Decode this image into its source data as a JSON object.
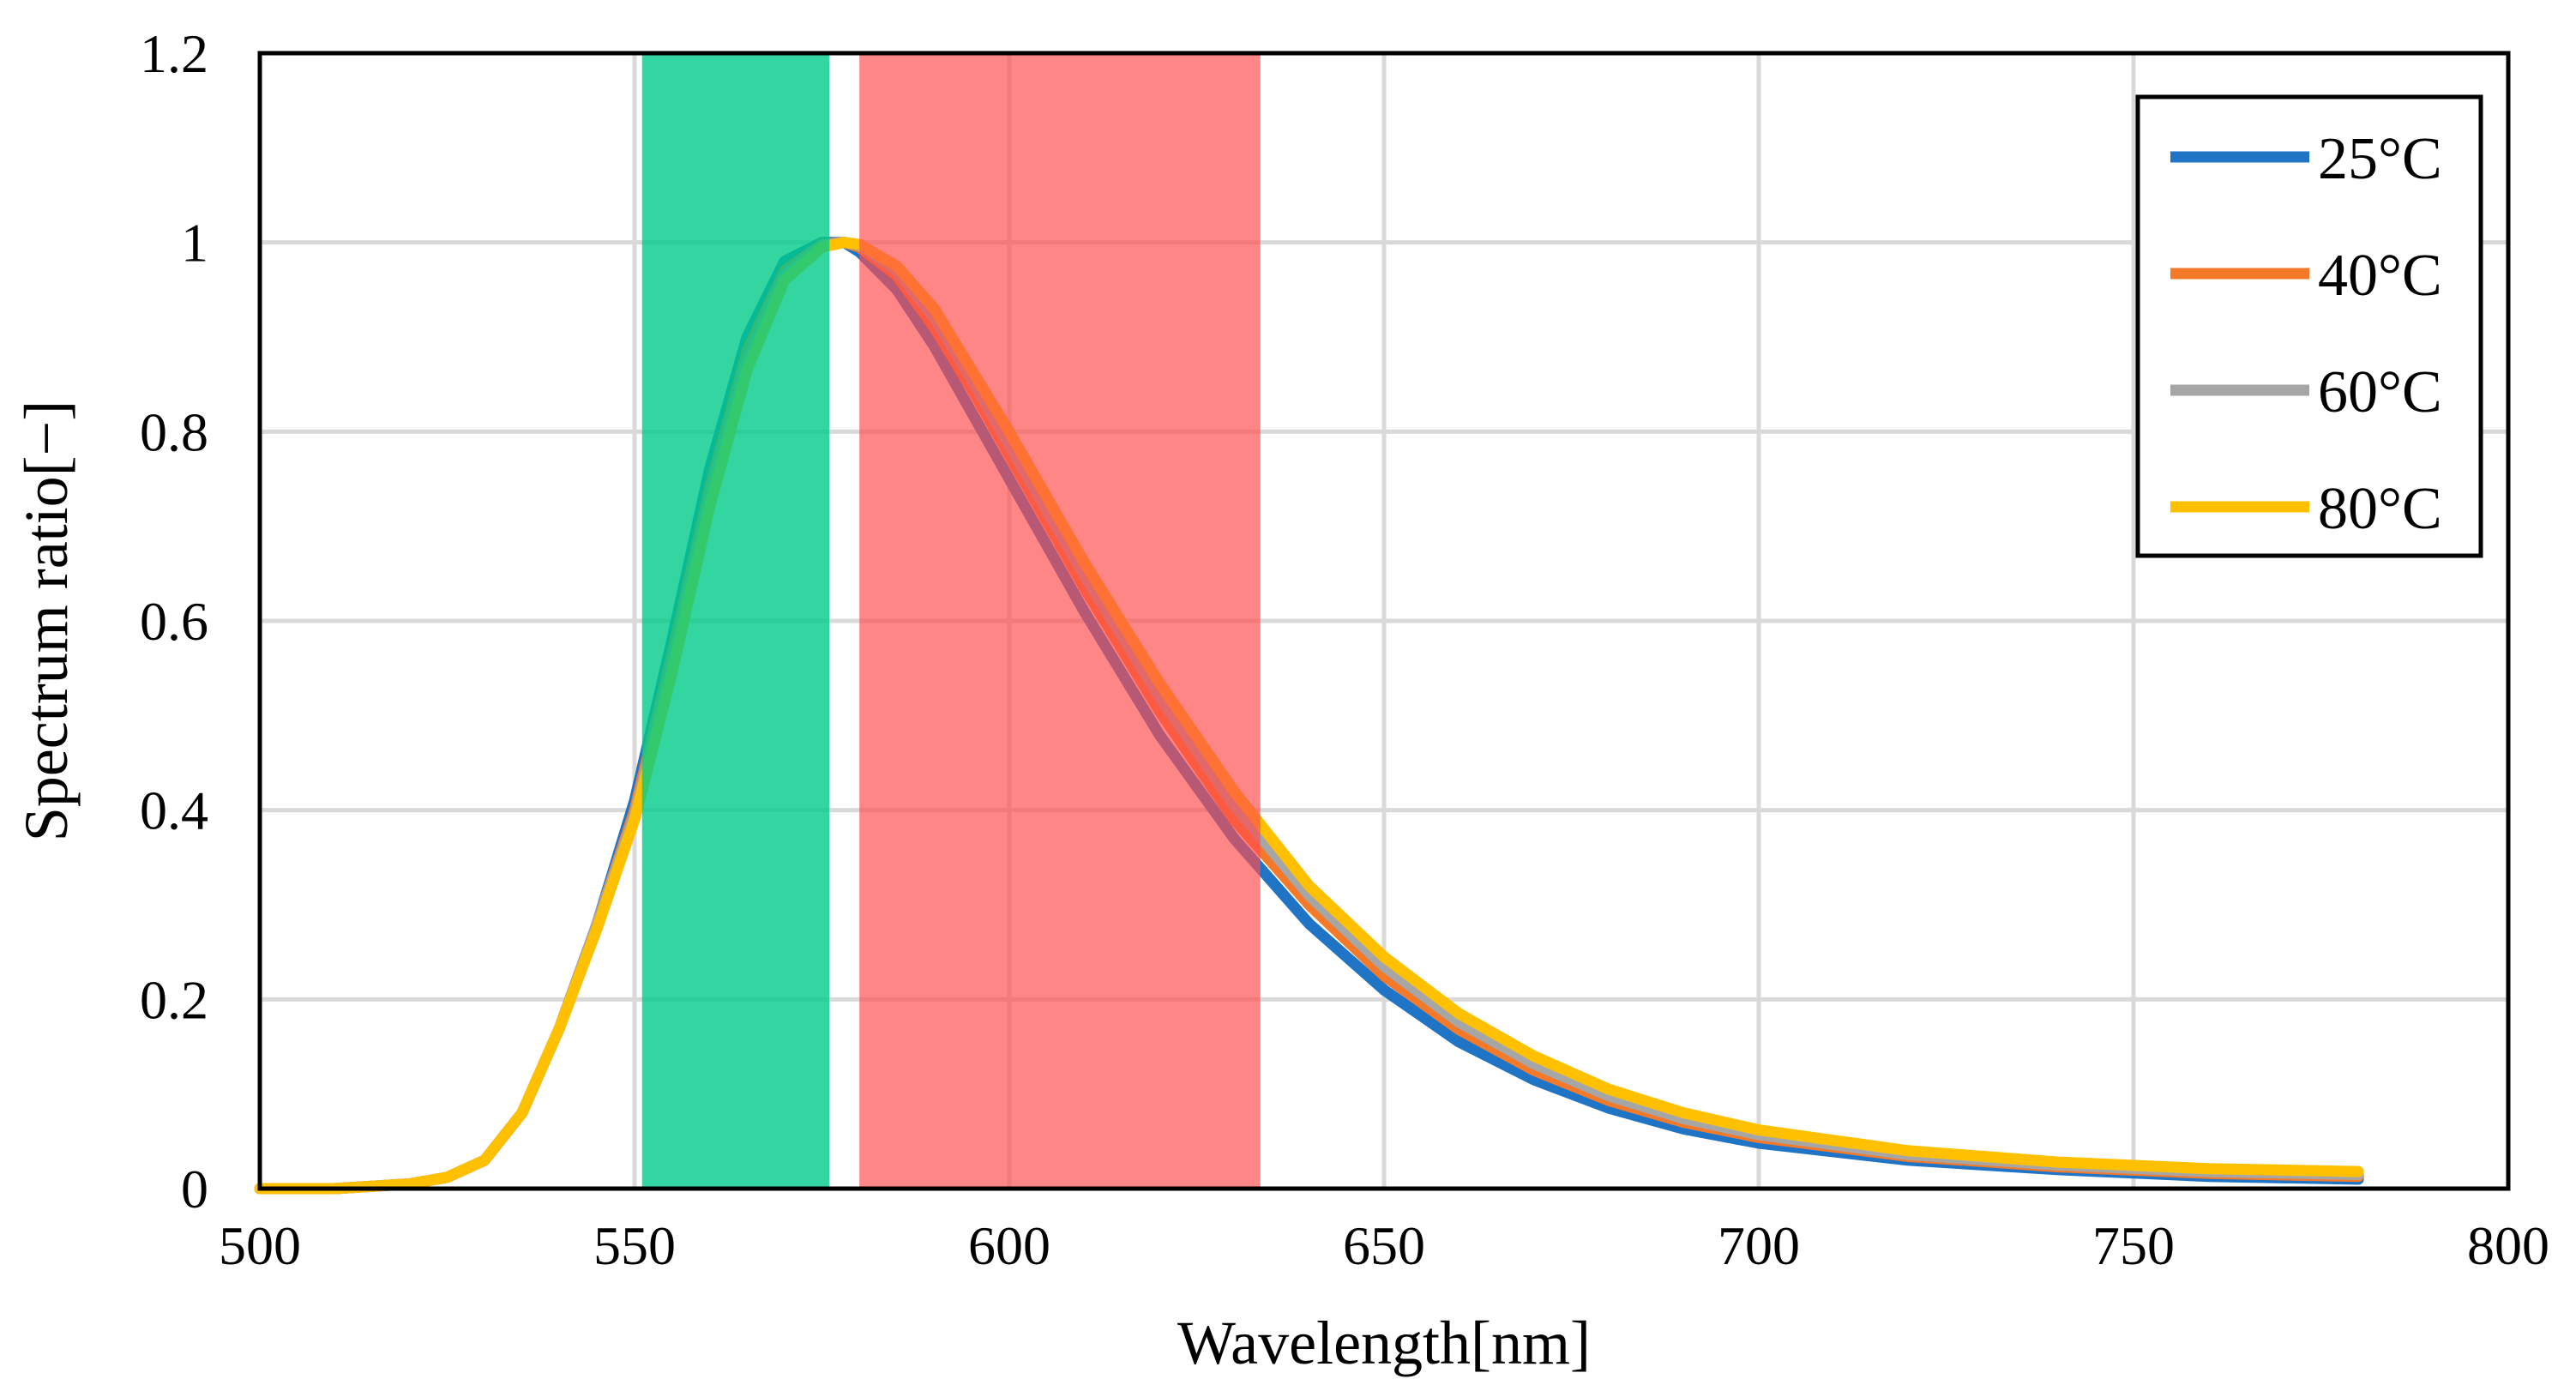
{
  "chart_data": {
    "type": "line",
    "title": "",
    "xlabel": "Wavelength[nm]",
    "ylabel": "Spectrum ratio[−]",
    "xlim": [
      500,
      800
    ],
    "ylim": [
      0,
      1.2
    ],
    "xticks": [
      500,
      550,
      600,
      650,
      700,
      750,
      800
    ],
    "xtick_labels": [
      "500",
      "550",
      "600",
      "650",
      "700",
      "750",
      "800"
    ],
    "yticks": [
      0,
      0.2,
      0.4,
      0.6,
      0.8,
      1.0,
      1.2
    ],
    "ytick_labels": [
      "0",
      "0.2",
      "0.4",
      "0.6",
      "0.8",
      "1",
      "1.2"
    ],
    "grid": true,
    "legend_position": "top-right",
    "shaded_bands": [
      {
        "name": "green-band",
        "x_start": 551,
        "x_end": 576,
        "color": "#00cc88",
        "opacity": 0.8
      },
      {
        "name": "red-band",
        "x_start": 580,
        "x_end": 633.5,
        "color": "#ff4d4d",
        "opacity": 0.68
      }
    ],
    "x": [
      500,
      510,
      520,
      525,
      530,
      535,
      540,
      545,
      550,
      555,
      560,
      565,
      570,
      575,
      578,
      580,
      585,
      590,
      595,
      600,
      610,
      620,
      630,
      640,
      650,
      660,
      670,
      680,
      690,
      700,
      720,
      740,
      760,
      780
    ],
    "series": [
      {
        "name": "25°C",
        "color": "#1f74c6",
        "values": [
          0.0,
          0.0,
          0.005,
          0.012,
          0.03,
          0.08,
          0.17,
          0.28,
          0.41,
          0.58,
          0.76,
          0.9,
          0.98,
          1.0,
          1.0,
          0.99,
          0.95,
          0.89,
          0.82,
          0.75,
          0.61,
          0.48,
          0.37,
          0.28,
          0.21,
          0.155,
          0.115,
          0.085,
          0.063,
          0.048,
          0.03,
          0.02,
          0.013,
          0.01
        ]
      },
      {
        "name": "40°C",
        "color": "#f47a2a",
        "values": [
          0.0,
          0.0,
          0.005,
          0.012,
          0.03,
          0.08,
          0.17,
          0.28,
          0.4,
          0.565,
          0.74,
          0.885,
          0.97,
          0.998,
          1.0,
          0.995,
          0.965,
          0.91,
          0.845,
          0.775,
          0.635,
          0.505,
          0.39,
          0.3,
          0.225,
          0.168,
          0.125,
          0.093,
          0.07,
          0.054,
          0.034,
          0.023,
          0.016,
          0.013
        ]
      },
      {
        "name": "60°C",
        "color": "#a6a6a6",
        "values": [
          0.0,
          0.0,
          0.005,
          0.012,
          0.03,
          0.08,
          0.17,
          0.28,
          0.395,
          0.555,
          0.73,
          0.875,
          0.965,
          0.997,
          1.0,
          0.997,
          0.97,
          0.92,
          0.855,
          0.785,
          0.648,
          0.52,
          0.405,
          0.31,
          0.235,
          0.176,
          0.132,
          0.098,
          0.074,
          0.057,
          0.036,
          0.025,
          0.018,
          0.015
        ]
      },
      {
        "name": "80°C",
        "color": "#ffc000",
        "values": [
          0.0,
          0.0,
          0.005,
          0.012,
          0.03,
          0.08,
          0.17,
          0.275,
          0.39,
          0.545,
          0.72,
          0.865,
          0.96,
          0.995,
          1.0,
          0.998,
          0.975,
          0.93,
          0.865,
          0.8,
          0.662,
          0.535,
          0.42,
          0.32,
          0.245,
          0.185,
          0.14,
          0.105,
          0.08,
          0.062,
          0.04,
          0.028,
          0.021,
          0.018
        ]
      }
    ]
  }
}
